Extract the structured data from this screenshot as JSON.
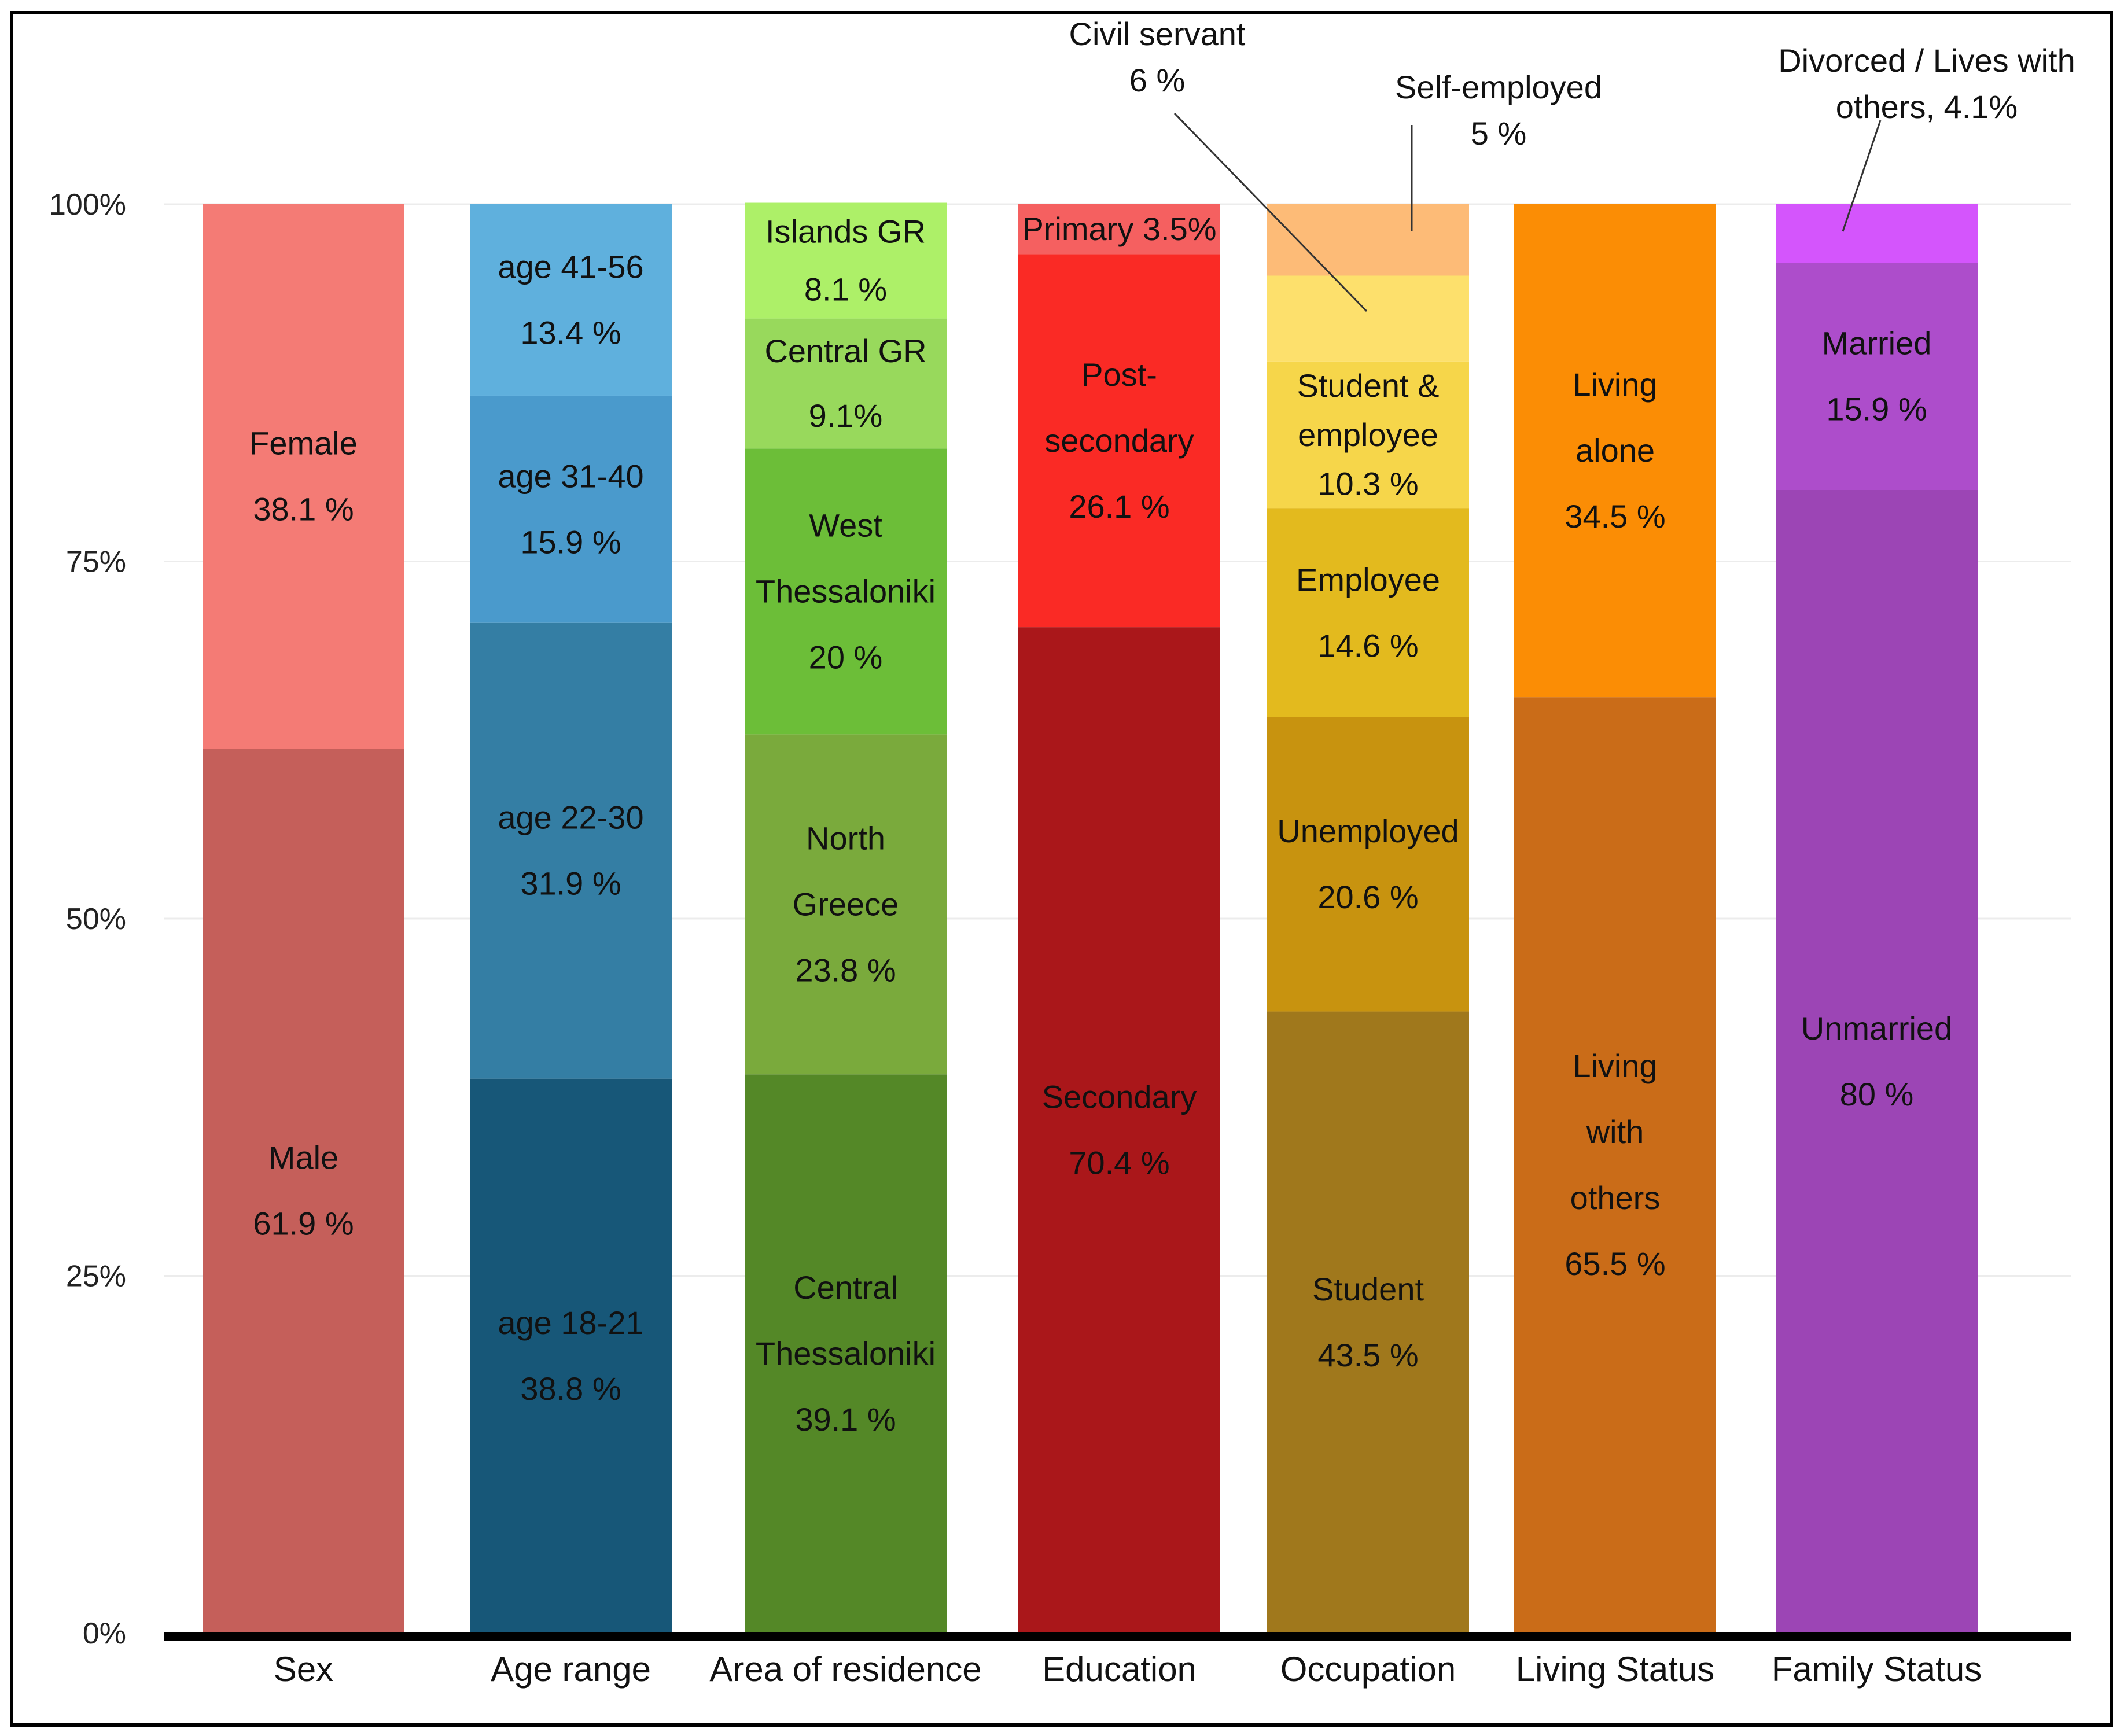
{
  "chart_data": {
    "type": "bar",
    "stacked": true,
    "normalized": true,
    "title": "",
    "xlabel": "",
    "ylabel": "",
    "ylim": [
      0,
      100
    ],
    "yticks": [
      "0%",
      "25%",
      "50%",
      "75%",
      "100%"
    ],
    "grid": true,
    "legend": "none",
    "categories": [
      "Sex",
      "Age range",
      "Area of residence",
      "Education",
      "Occupation",
      "Living Status",
      "Family Status"
    ],
    "bars": [
      {
        "category": "Sex",
        "segments": [
          {
            "name": "Male",
            "value": 61.9,
            "lines": [
              "Male",
              "61.9 %"
            ],
            "color": "#c55f5a"
          },
          {
            "name": "Female",
            "value": 38.1,
            "lines": [
              "Female",
              "38.1 %"
            ],
            "color": "#f47b75"
          }
        ]
      },
      {
        "category": "Age range",
        "segments": [
          {
            "name": "age 18-21",
            "value": 38.8,
            "lines": [
              "age 18-21",
              "38.8 %"
            ],
            "color": "#175778"
          },
          {
            "name": "age 22-30",
            "value": 31.9,
            "lines": [
              "age 22-30",
              "31.9 %"
            ],
            "color": "#347ea4"
          },
          {
            "name": "age 31-40",
            "value": 15.9,
            "lines": [
              "age 31-40",
              "15.9 %"
            ],
            "color": "#4a9acc"
          },
          {
            "name": "age 41-56",
            "value": 13.4,
            "lines": [
              "age 41-56",
              "13.4 %"
            ],
            "color": "#5fb0dd"
          }
        ]
      },
      {
        "category": "Area of residence",
        "segments": [
          {
            "name": "Central Thessaloniki",
            "value": 39.1,
            "lines": [
              "Central",
              "Thessaloniki",
              "39.1 %"
            ],
            "color": "#548827"
          },
          {
            "name": "North Greece",
            "value": 23.8,
            "lines": [
              "North",
              "Greece",
              "23.8 %"
            ],
            "color": "#7aaa3c"
          },
          {
            "name": "West Thessaloniki",
            "value": 20,
            "lines": [
              "West",
              "Thessaloniki",
              "20 %"
            ],
            "color": "#6cbe38"
          },
          {
            "name": "Central GR",
            "value": 9.1,
            "lines": [
              "Central GR",
              "9.1%"
            ],
            "color": "#98d95c"
          },
          {
            "name": "Islands GR",
            "value": 8.1,
            "lines": [
              "Islands GR",
              "8.1 %"
            ],
            "color": "#adf068"
          }
        ]
      },
      {
        "category": "Education",
        "segments": [
          {
            "name": "Secondary",
            "value": 70.4,
            "lines": [
              "Secondary",
              "70.4 %"
            ],
            "color": "#aa171a"
          },
          {
            "name": "Post-secondary",
            "value": 26.1,
            "lines": [
              "Post-",
              "secondary",
              "26.1 %"
            ],
            "color": "#fa2a25"
          },
          {
            "name": "Primary",
            "value": 3.5,
            "lines": [
              "Primary 3.5%"
            ],
            "color": "#f56060"
          }
        ]
      },
      {
        "category": "Occupation",
        "segments": [
          {
            "name": "Student",
            "value": 43.5,
            "lines": [
              "Student",
              "43.5 %"
            ],
            "color": "#a0781c"
          },
          {
            "name": "Unemployed",
            "value": 20.6,
            "lines": [
              "Unemployed",
              "20.6 %"
            ],
            "color": "#c8930f"
          },
          {
            "name": "Employee",
            "value": 14.6,
            "lines": [
              "Employee",
              "14.6 %"
            ],
            "color": "#e3ba1e"
          },
          {
            "name": "Student & employee",
            "value": 10.3,
            "lines": [
              "Student &",
              "employee",
              "10.3 %"
            ],
            "color": "#f6d64a"
          },
          {
            "name": "Civil servant",
            "value": 6,
            "lines": [],
            "color": "#fde06c"
          },
          {
            "name": "Self-employed",
            "value": 5,
            "lines": [],
            "color": "#fdbb77"
          }
        ]
      },
      {
        "category": "Living Status",
        "segments": [
          {
            "name": "Living with others",
            "value": 65.5,
            "lines": [
              "Living",
              "with",
              "others",
              "65.5 %"
            ],
            "color": "#ca6c18"
          },
          {
            "name": "Living alone",
            "value": 34.5,
            "lines": [
              "Living",
              "alone",
              "34.5 %"
            ],
            "color": "#fb8d05"
          }
        ]
      },
      {
        "category": "Family Status",
        "segments": [
          {
            "name": "Unmarried",
            "value": 80,
            "lines": [
              "Unmarried",
              "80 %"
            ],
            "color": "#9c45b5"
          },
          {
            "name": "Married",
            "value": 15.9,
            "lines": [
              "Married",
              "15.9 %"
            ],
            "color": "#ad4dcb"
          },
          {
            "name": "Divorced / Lives with others",
            "value": 4.1,
            "lines": [],
            "color": "#d455fc"
          }
        ]
      }
    ],
    "annotations": [
      {
        "bar": "Occupation",
        "segment": "Civil servant",
        "lines": [
          "Civil servant",
          "6 %"
        ]
      },
      {
        "bar": "Occupation",
        "segment": "Self-employed",
        "lines": [
          "Self-employed",
          "5 %"
        ]
      },
      {
        "bar": "Family Status",
        "segment": "Divorced / Lives with others",
        "lines": [
          "Divorced / Lives with",
          "others, 4.1%"
        ]
      }
    ]
  }
}
